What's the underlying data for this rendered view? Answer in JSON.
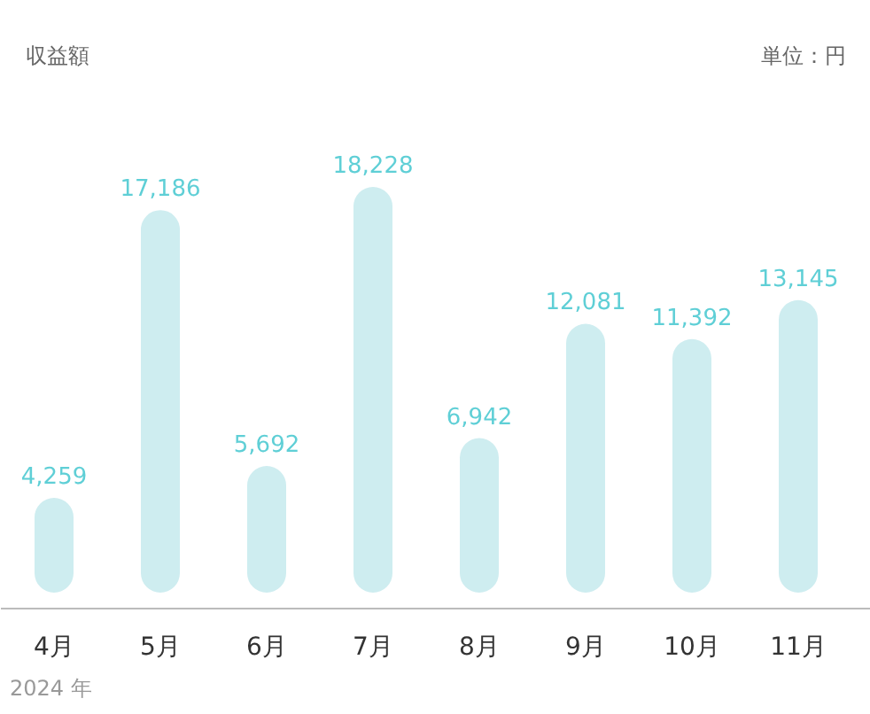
{
  "chart_data": {
    "type": "bar",
    "annotations": [
      "収益額",
      "単位：円",
      "2024 年"
    ],
    "categories": [
      "4月",
      "5月",
      "6月",
      "7月",
      "8月",
      "9月",
      "10月",
      "11月"
    ],
    "values": [
      4259,
      17186,
      5692,
      18228,
      6942,
      12081,
      11392,
      13145
    ],
    "value_labels": [
      "4,259",
      "17,186",
      "5,692",
      "18,228",
      "6,942",
      "12,081",
      "11,392",
      "13,145"
    ],
    "color": "#ceedf0"
  }
}
